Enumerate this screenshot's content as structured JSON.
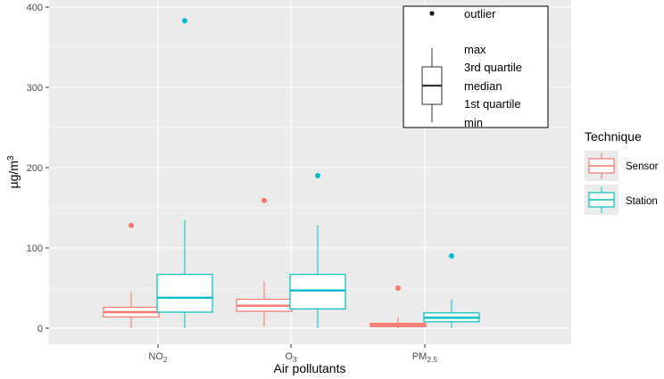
{
  "chart_data": {
    "type": "boxplot",
    "xlabel": "Air pollutants",
    "ylabel": {
      "base": "µg/m",
      "sup": "3"
    },
    "ylim": [
      0,
      400
    ],
    "y_ticks": [
      "0",
      "100",
      "200",
      "300",
      "400"
    ],
    "categories": [
      {
        "base": "NO",
        "sub": "2"
      },
      {
        "base": "O",
        "sub": "3"
      },
      {
        "base": "PM",
        "sub": "2.5"
      }
    ],
    "colors": {
      "Sensor": "#f8766d",
      "Station": "#00bfc4"
    },
    "series": [
      {
        "name": "Sensor",
        "boxes": [
          {
            "min": 0,
            "q1": 14,
            "median": 20,
            "q3": 26,
            "max": 45,
            "outliers": [
              128
            ]
          },
          {
            "min": 2,
            "q1": 21,
            "median": 28,
            "q3": 36,
            "max": 58,
            "outliers": [
              159
            ]
          },
          {
            "min": 0,
            "q1": 2,
            "median": 4,
            "q3": 6,
            "max": 13,
            "outliers": [
              50
            ]
          }
        ]
      },
      {
        "name": "Station",
        "boxes": [
          {
            "min": 0,
            "q1": 20,
            "median": 38,
            "q3": 67,
            "max": 135,
            "outliers": [
              383
            ]
          },
          {
            "min": 0,
            "q1": 24,
            "median": 47,
            "q3": 67,
            "max": 128,
            "outliers": [
              190
            ]
          },
          {
            "min": 0,
            "q1": 8,
            "median": 13,
            "q3": 19,
            "max": 36,
            "outliers": [
              90
            ]
          }
        ]
      }
    ],
    "legend": {
      "title": "Technique",
      "entries": [
        "Sensor",
        "Station"
      ],
      "placement": "right"
    },
    "key_box": {
      "outlier_label": "outlier",
      "labels": [
        "max",
        "3rd quartile",
        "median",
        "1st quartile",
        "min"
      ]
    }
  }
}
